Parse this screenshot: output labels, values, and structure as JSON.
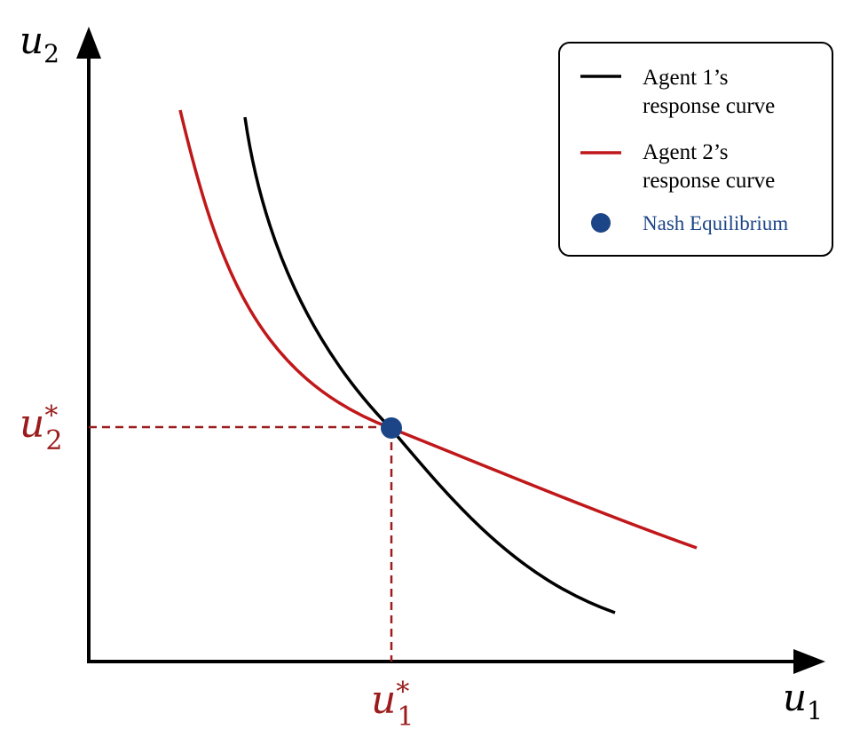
{
  "axes": {
    "x_label": "u",
    "x_label_sub": "1",
    "y_label": "u",
    "y_label_sub": "2"
  },
  "equilibrium_labels": {
    "x_label": "u",
    "x_label_sup": "*",
    "x_label_sub": "1",
    "y_label": "u",
    "y_label_sup": "*",
    "y_label_sub": "2"
  },
  "legend": {
    "agent1_line1": "Agent 1’s",
    "agent1_line2": "response curve",
    "agent2_line1": "Agent 2’s",
    "agent2_line2": "response curve",
    "nash": "Nash Equilibrium"
  },
  "colors": {
    "agent1": "#000000",
    "agent2": "#c0181a",
    "nash": "#1c4587",
    "guide": "#9b1c1c"
  }
}
